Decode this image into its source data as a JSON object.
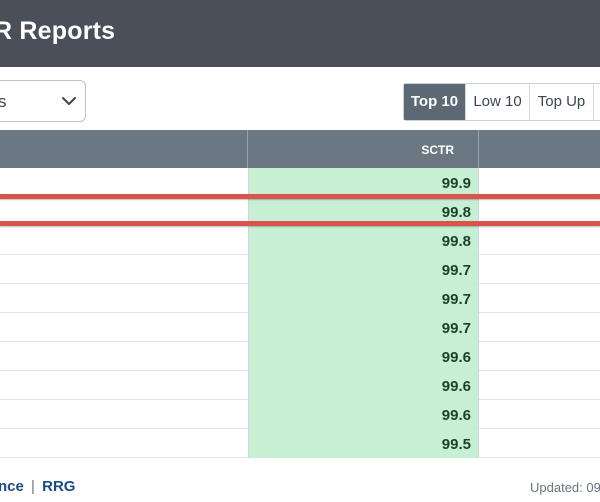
{
  "header": {
    "title": "R Reports"
  },
  "dropdown": {
    "value": "s"
  },
  "toggles": [
    {
      "label": "Top 10",
      "active": true
    },
    {
      "label": "Low 10",
      "active": false
    },
    {
      "label": "Top Up",
      "active": false
    },
    {
      "label": "",
      "active": false
    }
  ],
  "table": {
    "columns": [
      "SCTR"
    ],
    "rows": [
      {
        "sctr": "99.9"
      },
      {
        "sctr": "99.8"
      },
      {
        "sctr": "99.8"
      },
      {
        "sctr": "99.7"
      },
      {
        "sctr": "99.7"
      },
      {
        "sctr": "99.7"
      },
      {
        "sctr": "99.6"
      },
      {
        "sctr": "99.6"
      },
      {
        "sctr": "99.6"
      },
      {
        "sctr": "99.5"
      }
    ]
  },
  "footer": {
    "link1": "nce",
    "separator": "|",
    "link2": "RRG",
    "updated": "Updated: 09."
  },
  "colors": {
    "header_bg": "#4a5059",
    "table_header_bg": "#6b7782",
    "sctr_cell_bg": "#c6efd4",
    "highlight_red": "#d9534f",
    "toggle_active_bg": "#5c6873"
  },
  "icons": {
    "dropdown": "chevron-down-icon"
  }
}
